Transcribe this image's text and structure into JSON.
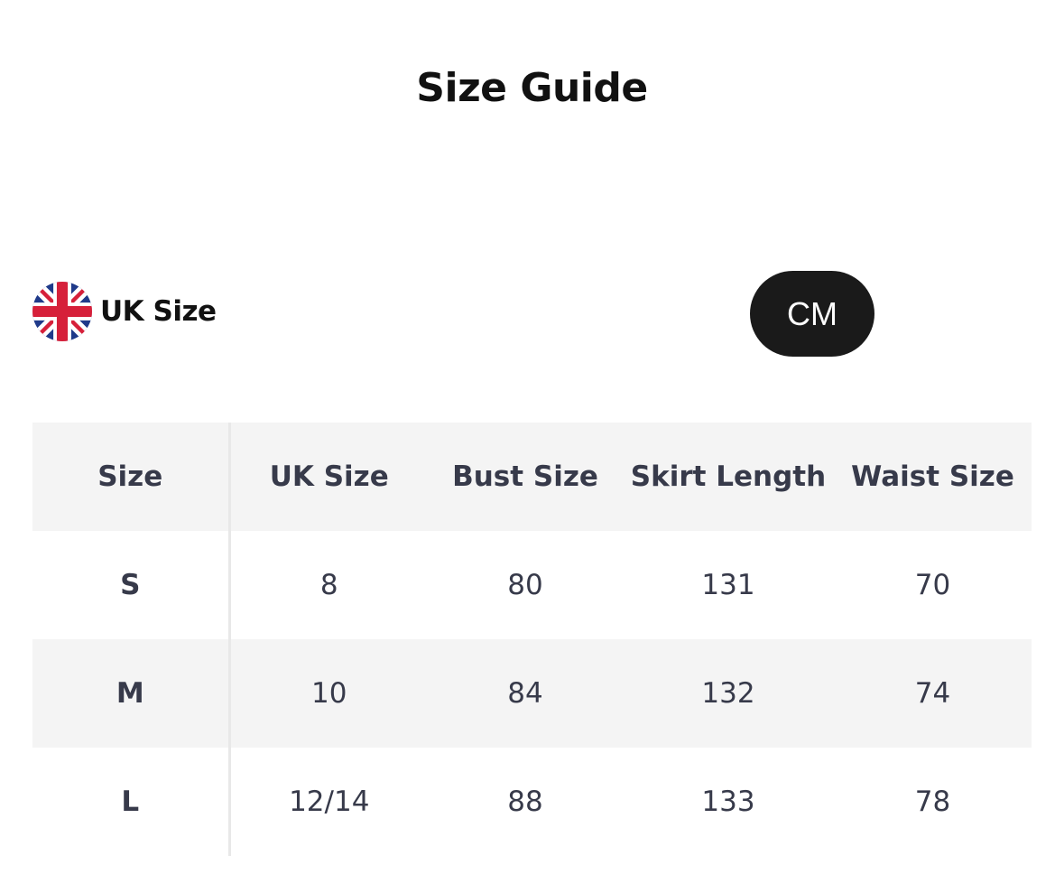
{
  "title": "Size Guide",
  "region": {
    "label": "UK Size",
    "flag_icon": "uk-flag-icon"
  },
  "unit_button": "CM",
  "table": {
    "headers": [
      "Size",
      "UK Size",
      "Bust Size",
      "Skirt Length",
      "Waist Size"
    ],
    "rows": [
      [
        "S",
        "8",
        "80",
        "131",
        "70"
      ],
      [
        "M",
        "10",
        "84",
        "132",
        "74"
      ],
      [
        "L",
        "12/14",
        "88",
        "133",
        "78"
      ]
    ]
  }
}
